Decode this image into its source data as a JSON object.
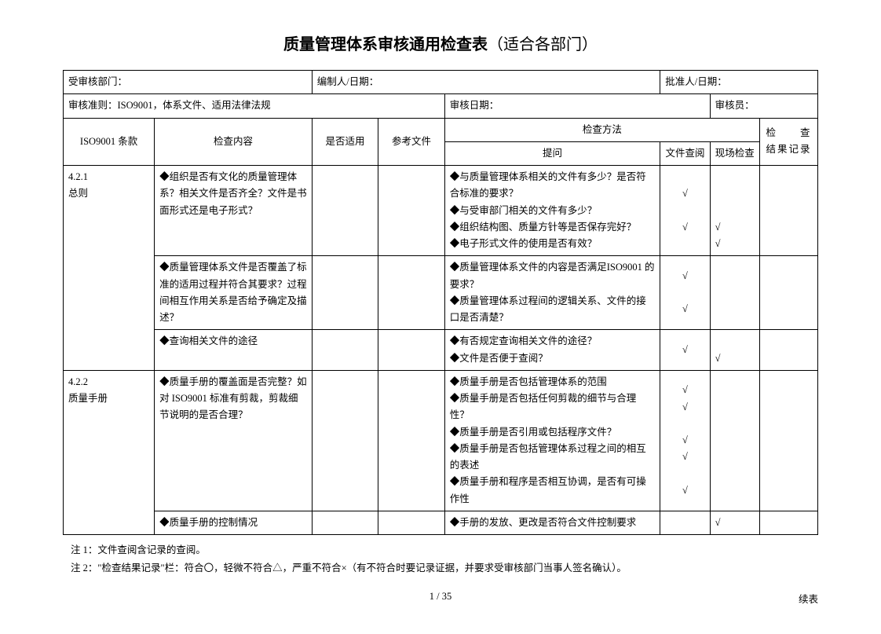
{
  "title_bold": "质量管理体系审核通用检查表",
  "title_normal": "（适合各部门）",
  "header": {
    "dept_label": "受审核部门：",
    "preparer_label": "编制人/日期：",
    "approver_label": "批准人/日期：",
    "criteria_label": "审核准则：ISO9001，体系文件、适用法律法规",
    "audit_date_label": "审核日期：",
    "auditor_label": "审核员："
  },
  "columns": {
    "clause": "ISO9001 条款",
    "content": "检查内容",
    "applicable": "是否适用",
    "ref": "参考文件",
    "method": "检查方法",
    "question": "提问",
    "doc_review": "文件查阅",
    "site_check": "现场检查",
    "result": "检　　查结果记录"
  },
  "rows": [
    {
      "clause": "4.2.1\n总则",
      "content": "◆组织是否有文化的质量管理体系？相关文件是否齐全？文件是书面形式还是电子形式？",
      "question": "◆与质量管理体系相关的文件有多少？是否符合标准的要求？\n◆与受审部门相关的文件有多少？\n◆组织结构图、质量方针等是否保存完好？\n◆电子形式文件的使用是否有效？",
      "doc": "√\n\n√",
      "site": "\n\n\n√\n√"
    },
    {
      "clause": "",
      "content": "◆质量管理体系文件是否覆盖了标准的适用过程并符合其要求？过程间相互作用关系是否给予确定及描述？",
      "question": "◆质量管理体系文件的内容是否满足ISO9001 的要求？\n◆质量管理体系过程间的逻辑关系、文件的接口是否清楚？",
      "doc": "√\n\n√",
      "site": ""
    },
    {
      "clause": "",
      "content": "◆查询相关文件的途径",
      "question": "◆有否规定查询相关文件的途径？\n◆文件是否便于查阅？",
      "doc": "√",
      "site": "\n√"
    },
    {
      "clause": "4.2.2\n质量手册",
      "content": "◆质量手册的覆盖面是否完整？如对 ISO9001 标准有剪裁，剪裁细节说明的是否合理？",
      "question": "◆质量手册是否包括管理体系的范围\n◆质量手册是否包括任何剪裁的细节与合理性？\n◆质量手册是否引用或包括程序文件？\n◆质量手册是否包括管理体系过程之间的相互的表述\n◆质量手册和程序是否相互协调，是否有可操作性",
      "doc": "√\n√\n\n√\n√\n\n√",
      "site": ""
    },
    {
      "clause": "",
      "content": "◆质量手册的控制情况",
      "question": "◆手册的发放、更改是否符合文件控制要求",
      "doc": "",
      "site": "√"
    }
  ],
  "notes": {
    "n1": "注 1：文件查阅含记录的查阅。",
    "n2": "注 2：\"检查结果记录\"栏：符合〇，轻微不符合△，严重不符合×（有不符合时要记录证据，并要求受审核部门当事人签名确认）。"
  },
  "footer": {
    "page": "1  /  35",
    "continue": "续表"
  }
}
